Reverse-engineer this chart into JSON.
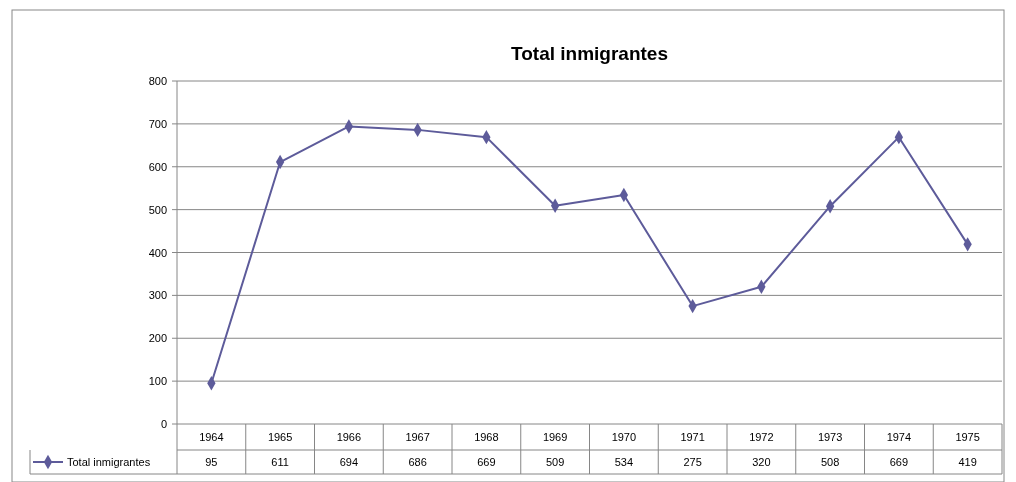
{
  "chart_data": {
    "type": "line",
    "title": "Total inmigrantes",
    "categories": [
      "1964",
      "1965",
      "1966",
      "1967",
      "1968",
      "1969",
      "1970",
      "1971",
      "1972",
      "1973",
      "1974",
      "1975"
    ],
    "series": [
      {
        "name": "Total inmigrantes",
        "color": "#5d5b9a",
        "values": [
          95,
          611,
          694,
          686,
          669,
          509,
          534,
          275,
          320,
          508,
          669,
          419
        ]
      }
    ],
    "ylim": [
      0,
      800
    ],
    "yticks": [
      0,
      100,
      200,
      300,
      400,
      500,
      600,
      700,
      800
    ],
    "grid": "y",
    "legend": "bottom left",
    "marker": "diamond",
    "line_style": "solid",
    "data_labels": true
  }
}
